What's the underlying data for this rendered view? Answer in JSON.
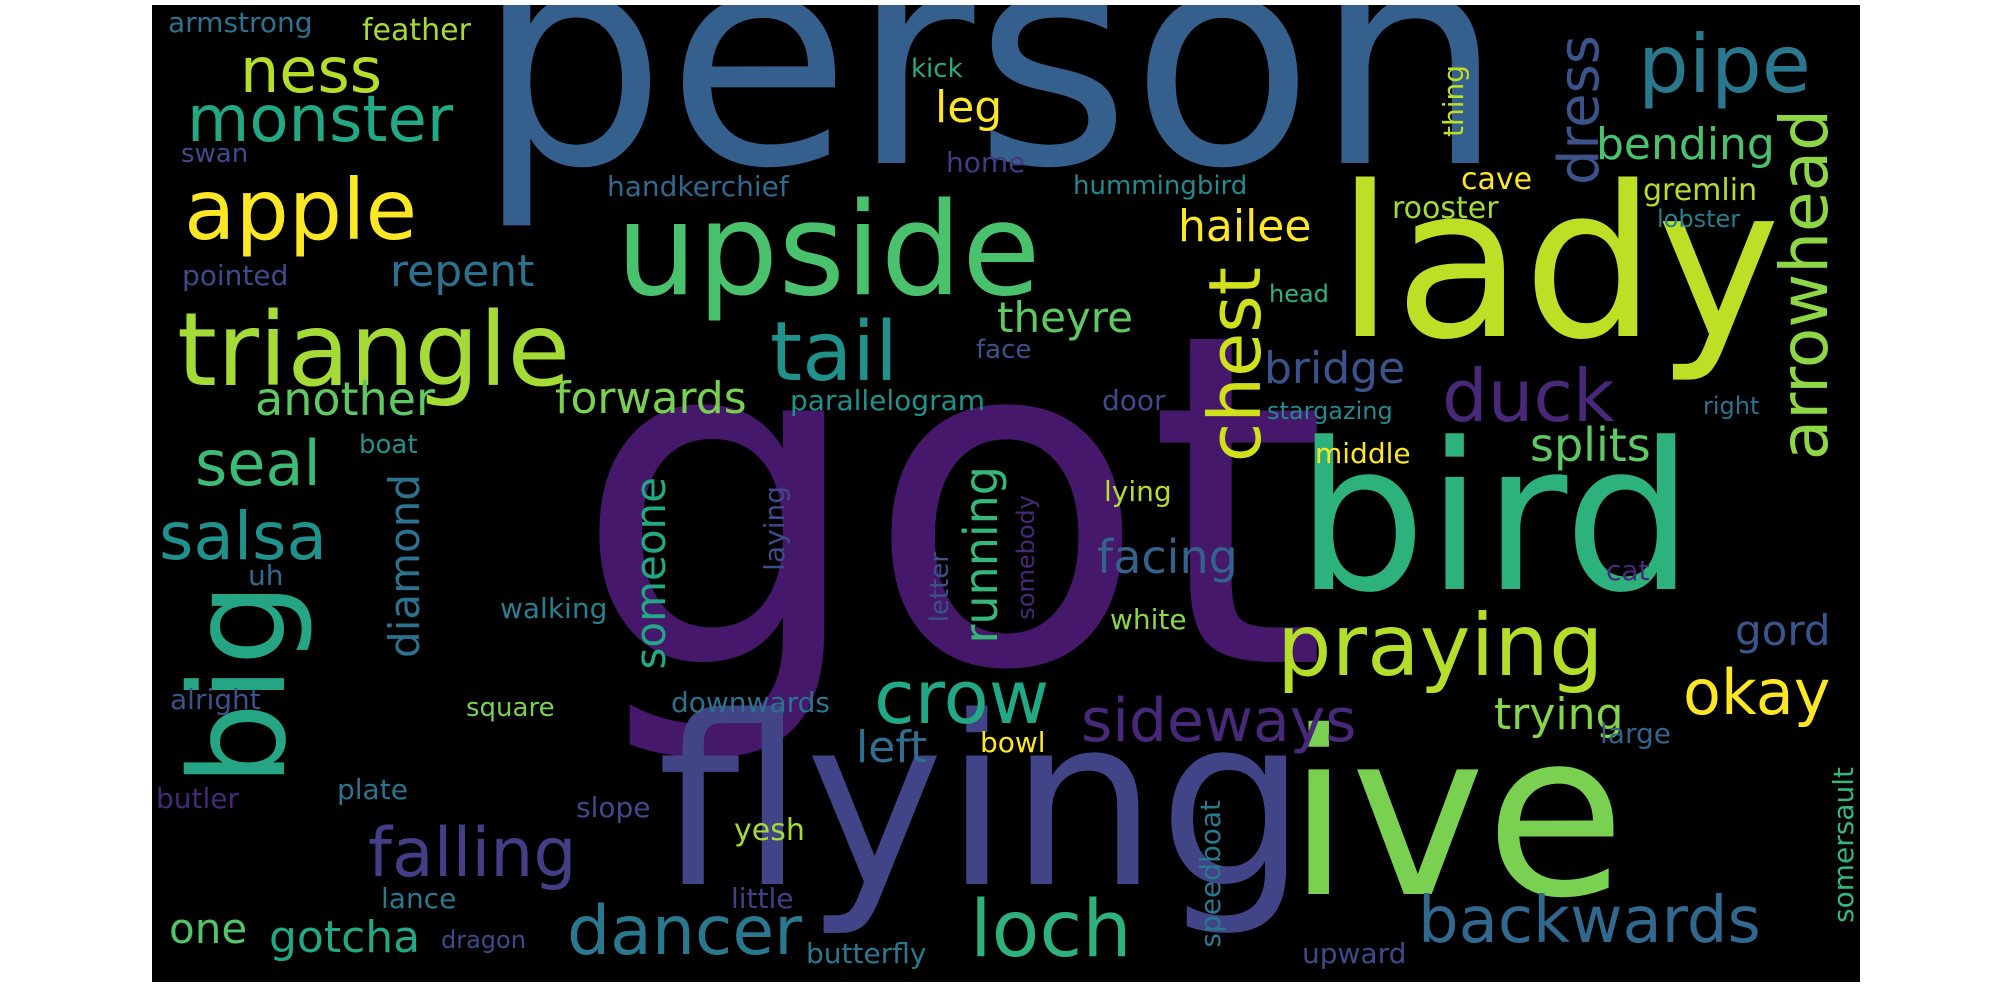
{
  "word_cloud": {
    "background": "#000000",
    "palette": "viridis",
    "words": [
      {
        "text": "got",
        "color": "#46186b",
        "orientation": "horizontal"
      },
      {
        "text": "person",
        "color": "#35608d",
        "orientation": "horizontal"
      },
      {
        "text": "flying",
        "color": "#414487",
        "orientation": "horizontal"
      },
      {
        "text": "ive",
        "color": "#7ad151",
        "orientation": "horizontal"
      },
      {
        "text": "lady",
        "color": "#bddf26",
        "orientation": "horizontal"
      },
      {
        "text": "bird",
        "color": "#2db27d",
        "orientation": "horizontal"
      },
      {
        "text": "upside",
        "color": "#4ac16d",
        "orientation": "horizontal"
      },
      {
        "text": "big",
        "color": "#25a584",
        "orientation": "vertical"
      },
      {
        "text": "triangle",
        "color": "#a5db36",
        "orientation": "horizontal"
      },
      {
        "text": "apple",
        "color": "#fde725",
        "orientation": "horizontal"
      },
      {
        "text": "monster",
        "color": "#22a884",
        "orientation": "horizontal"
      },
      {
        "text": "ness",
        "color": "#b5de2b",
        "orientation": "horizontal"
      },
      {
        "text": "pipe",
        "color": "#2a788e",
        "orientation": "horizontal"
      },
      {
        "text": "tail",
        "color": "#21918c",
        "orientation": "horizontal"
      },
      {
        "text": "chest",
        "color": "#d0e11c",
        "orientation": "vertical"
      },
      {
        "text": "arrowhead",
        "color": "#8ed645",
        "orientation": "vertical"
      },
      {
        "text": "dress",
        "color": "#3b528b",
        "orientation": "vertical"
      },
      {
        "text": "duck",
        "color": "#482878",
        "orientation": "horizontal"
      },
      {
        "text": "praying",
        "color": "#b5de2b",
        "orientation": "horizontal"
      },
      {
        "text": "crow",
        "color": "#22a884",
        "orientation": "horizontal"
      },
      {
        "text": "sideways",
        "color": "#482878",
        "orientation": "horizontal"
      },
      {
        "text": "okay",
        "color": "#fde725",
        "orientation": "horizontal"
      },
      {
        "text": "backwards",
        "color": "#31688e",
        "orientation": "horizontal"
      },
      {
        "text": "loch",
        "color": "#2db27d",
        "orientation": "horizontal"
      },
      {
        "text": "dancer",
        "color": "#2a788e",
        "orientation": "horizontal"
      },
      {
        "text": "falling",
        "color": "#433e85",
        "orientation": "horizontal"
      },
      {
        "text": "salsa",
        "color": "#21918c",
        "orientation": "horizontal"
      },
      {
        "text": "seal",
        "color": "#3bbb75",
        "orientation": "horizontal"
      },
      {
        "text": "another",
        "color": "#5ec962",
        "orientation": "horizontal"
      },
      {
        "text": "forwards",
        "color": "#7ad151",
        "orientation": "horizontal"
      },
      {
        "text": "repent",
        "color": "#2c728e",
        "orientation": "horizontal"
      },
      {
        "text": "theyre",
        "color": "#5ec962",
        "orientation": "horizontal"
      },
      {
        "text": "bending",
        "color": "#4ac16d",
        "orientation": "horizontal"
      },
      {
        "text": "hailee",
        "color": "#fde725",
        "orientation": "horizontal"
      },
      {
        "text": "leg",
        "color": "#fde725",
        "orientation": "horizontal"
      },
      {
        "text": "bridge",
        "color": "#3b528b",
        "orientation": "horizontal"
      },
      {
        "text": "splits",
        "color": "#5ec962",
        "orientation": "horizontal"
      },
      {
        "text": "facing",
        "color": "#33638d",
        "orientation": "horizontal"
      },
      {
        "text": "running",
        "color": "#35b779",
        "orientation": "vertical"
      },
      {
        "text": "someone",
        "color": "#22a884",
        "orientation": "vertical"
      },
      {
        "text": "diamond",
        "color": "#2c728e",
        "orientation": "vertical"
      },
      {
        "text": "trying",
        "color": "#86d549",
        "orientation": "horizontal"
      },
      {
        "text": "gord",
        "color": "#39568c",
        "orientation": "horizontal"
      },
      {
        "text": "left",
        "color": "#2e6e8e",
        "orientation": "horizontal"
      },
      {
        "text": "one",
        "color": "#52c569",
        "orientation": "horizontal"
      },
      {
        "text": "gotcha",
        "color": "#22a884",
        "orientation": "horizontal"
      },
      {
        "text": "feather",
        "color": "#a5db36",
        "orientation": "horizontal"
      },
      {
        "text": "armstrong",
        "color": "#2c728e",
        "orientation": "horizontal"
      },
      {
        "text": "swan",
        "color": "#3e4a89",
        "orientation": "horizontal"
      },
      {
        "text": "kick",
        "color": "#25ac82",
        "orientation": "horizontal"
      },
      {
        "text": "thing",
        "color": "#bddf26",
        "orientation": "vertical"
      },
      {
        "text": "home",
        "color": "#443983",
        "orientation": "horizontal"
      },
      {
        "text": "handkerchief",
        "color": "#31688e",
        "orientation": "horizontal"
      },
      {
        "text": "hummingbird",
        "color": "#23898e",
        "orientation": "horizontal"
      },
      {
        "text": "cave",
        "color": "#fde725",
        "orientation": "horizontal"
      },
      {
        "text": "gremlin",
        "color": "#b5de2b",
        "orientation": "horizontal"
      },
      {
        "text": "lobster",
        "color": "#277f8e",
        "orientation": "horizontal"
      },
      {
        "text": "rooster",
        "color": "#a5db36",
        "orientation": "horizontal"
      },
      {
        "text": "pointed",
        "color": "#3e4a89",
        "orientation": "horizontal"
      },
      {
        "text": "head",
        "color": "#2db27d",
        "orientation": "horizontal"
      },
      {
        "text": "face",
        "color": "#3b528b",
        "orientation": "horizontal"
      },
      {
        "text": "parallelogram",
        "color": "#21918c",
        "orientation": "horizontal"
      },
      {
        "text": "door",
        "color": "#3e4a89",
        "orientation": "horizontal"
      },
      {
        "text": "stargazing",
        "color": "#23898e",
        "orientation": "horizontal"
      },
      {
        "text": "right",
        "color": "#2c728e",
        "orientation": "horizontal"
      },
      {
        "text": "boat",
        "color": "#21918c",
        "orientation": "horizontal"
      },
      {
        "text": "middle",
        "color": "#fde725",
        "orientation": "horizontal"
      },
      {
        "text": "lying",
        "color": "#b5de2b",
        "orientation": "horizontal"
      },
      {
        "text": "laying",
        "color": "#3e4a89",
        "orientation": "vertical"
      },
      {
        "text": "somebody",
        "color": "#482878",
        "orientation": "vertical"
      },
      {
        "text": "letter",
        "color": "#3b528b",
        "orientation": "vertical"
      },
      {
        "text": "uh",
        "color": "#31688e",
        "orientation": "horizontal"
      },
      {
        "text": "walking",
        "color": "#277f8e",
        "orientation": "horizontal"
      },
      {
        "text": "white",
        "color": "#8ed645",
        "orientation": "horizontal"
      },
      {
        "text": "cat",
        "color": "#482878",
        "orientation": "horizontal"
      },
      {
        "text": "alright",
        "color": "#3b528b",
        "orientation": "horizontal"
      },
      {
        "text": "square",
        "color": "#7ad151",
        "orientation": "horizontal"
      },
      {
        "text": "downwards",
        "color": "#2c728e",
        "orientation": "horizontal"
      },
      {
        "text": "bowl",
        "color": "#fde725",
        "orientation": "horizontal"
      },
      {
        "text": "large",
        "color": "#33638d",
        "orientation": "horizontal"
      },
      {
        "text": "butler",
        "color": "#482878",
        "orientation": "horizontal"
      },
      {
        "text": "plate",
        "color": "#2c728e",
        "orientation": "horizontal"
      },
      {
        "text": "slope",
        "color": "#3e4a89",
        "orientation": "horizontal"
      },
      {
        "text": "yesh",
        "color": "#a5db36",
        "orientation": "horizontal"
      },
      {
        "text": "speedboat",
        "color": "#2a788e",
        "orientation": "vertical"
      },
      {
        "text": "somersault",
        "color": "#35b779",
        "orientation": "vertical"
      },
      {
        "text": "lance",
        "color": "#2a788e",
        "orientation": "horizontal"
      },
      {
        "text": "dragon",
        "color": "#3e4a89",
        "orientation": "horizontal"
      },
      {
        "text": "little",
        "color": "#433e85",
        "orientation": "horizontal"
      },
      {
        "text": "butterfly",
        "color": "#2a788e",
        "orientation": "horizontal"
      },
      {
        "text": "upward",
        "color": "#3e4a89",
        "orientation": "horizontal"
      }
    ]
  }
}
